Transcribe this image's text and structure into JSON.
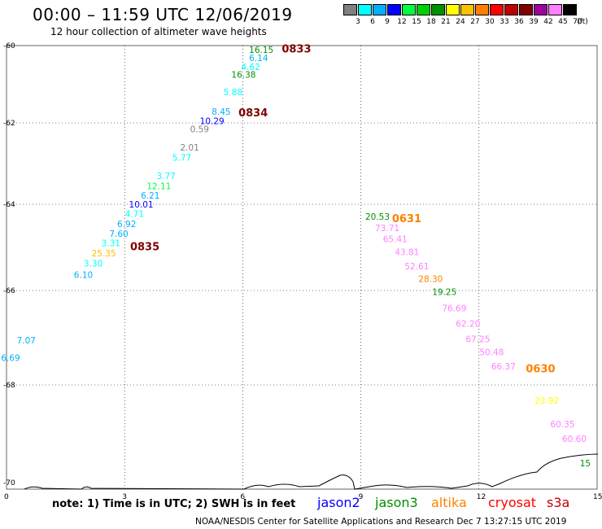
{
  "header": {
    "title": "00:00 – 11:59 UTC 12/06/2019",
    "subtitle": "12 hour collection of altimeter wave heights"
  },
  "legend": {
    "colors": [
      "#808080",
      "#00ffff",
      "#00b0ff",
      "#0000ff",
      "#00ff40",
      "#00d000",
      "#009000",
      "#ffff00",
      "#ffc000",
      "#ff8000",
      "#ff0000",
      "#c00000",
      "#800000",
      "#a000a0",
      "#ff80ff",
      "#000000"
    ],
    "labels": [
      "3",
      "6",
      "9",
      "12",
      "15",
      "18",
      "21",
      "24",
      "27",
      "30",
      "33",
      "36",
      "39",
      "42",
      "45",
      "70"
    ],
    "unit": "(ft)"
  },
  "axes": {
    "lat_ticks": [
      "-60",
      "-62",
      "-64",
      "-66",
      "-68",
      "-70"
    ],
    "lon_ticks": [
      "0",
      "3",
      "6",
      "9",
      "12",
      "15"
    ]
  },
  "observations": [
    {
      "lon": 6.45,
      "lat": -60.1,
      "value": "16.15",
      "color": "#009000"
    },
    {
      "lon": 6.45,
      "lat": -60.32,
      "value": "6.14",
      "color": "#00b0ff"
    },
    {
      "lon": 6.25,
      "lat": -60.55,
      "value": "4.62",
      "color": "#00ffff"
    },
    {
      "lon": 6.0,
      "lat": -60.75,
      "value": "16.38",
      "color": "#009000"
    },
    {
      "lon": 5.8,
      "lat": -61.2,
      "value": "5.88",
      "color": "#00ffff"
    },
    {
      "lon": 5.5,
      "lat": -61.7,
      "value": "8.45",
      "color": "#00b0ff"
    },
    {
      "lon": 5.2,
      "lat": -61.95,
      "value": "10.29",
      "color": "#0000ff"
    },
    {
      "lon": 4.95,
      "lat": -62.15,
      "value": "0.59",
      "color": "#808080"
    },
    {
      "lon": 4.7,
      "lat": -62.6,
      "value": "2.01",
      "color": "#808080"
    },
    {
      "lon": 4.5,
      "lat": -62.85,
      "value": "5.77",
      "color": "#00ffff"
    },
    {
      "lon": 4.1,
      "lat": -63.3,
      "value": "3.77",
      "color": "#00ffff"
    },
    {
      "lon": 3.85,
      "lat": -63.55,
      "value": "12.11",
      "color": "#00ff40"
    },
    {
      "lon": 3.7,
      "lat": -63.78,
      "value": "6.21",
      "color": "#00b0ff"
    },
    {
      "lon": 3.4,
      "lat": -64.0,
      "value": "10.01",
      "color": "#0000ff"
    },
    {
      "lon": 3.3,
      "lat": -64.22,
      "value": "4.71",
      "color": "#00ffff"
    },
    {
      "lon": 3.1,
      "lat": -64.45,
      "value": "6.92",
      "color": "#00b0ff"
    },
    {
      "lon": 2.9,
      "lat": -64.68,
      "value": "7.60",
      "color": "#00b0ff"
    },
    {
      "lon": 2.7,
      "lat": -64.9,
      "value": "3.31",
      "color": "#00ffff"
    },
    {
      "lon": 2.45,
      "lat": -65.13,
      "value": "25.35",
      "color": "#ffc000"
    },
    {
      "lon": 2.25,
      "lat": -65.37,
      "value": "3.30",
      "color": "#00ffff"
    },
    {
      "lon": 2.0,
      "lat": -65.63,
      "value": "6.10",
      "color": "#00b0ff"
    },
    {
      "lon": 0.55,
      "lat": -67.05,
      "value": "7.07",
      "color": "#00b0ff"
    },
    {
      "lon": 0.15,
      "lat": -67.42,
      "value": "6.69",
      "color": "#00b0ff"
    },
    {
      "lon": 9.4,
      "lat": -64.28,
      "value": "20.53",
      "color": "#009000"
    },
    {
      "lon": 9.65,
      "lat": -64.55,
      "value": "73.71",
      "color": "#ff80ff"
    },
    {
      "lon": 9.85,
      "lat": -64.8,
      "value": "65.41",
      "color": "#ff80ff"
    },
    {
      "lon": 10.15,
      "lat": -65.1,
      "value": "43.81",
      "color": "#ff80ff"
    },
    {
      "lon": 10.4,
      "lat": -65.43,
      "value": "52.61",
      "color": "#ff80ff"
    },
    {
      "lon": 10.75,
      "lat": -65.73,
      "value": "28.30",
      "color": "#ff8000"
    },
    {
      "lon": 11.1,
      "lat": -66.03,
      "value": "19.25",
      "color": "#009000"
    },
    {
      "lon": 11.35,
      "lat": -66.37,
      "value": "76.69",
      "color": "#ff80ff"
    },
    {
      "lon": 11.7,
      "lat": -66.7,
      "value": "62.20",
      "color": "#ff80ff"
    },
    {
      "lon": 11.95,
      "lat": -67.03,
      "value": "67.25",
      "color": "#ff80ff"
    },
    {
      "lon": 12.3,
      "lat": -67.3,
      "value": "50.48",
      "color": "#ff80ff"
    },
    {
      "lon": 12.6,
      "lat": -67.6,
      "value": "66.37",
      "color": "#ff80ff"
    },
    {
      "lon": 13.7,
      "lat": -68.32,
      "value": "23.92",
      "color": "#ffff00"
    },
    {
      "lon": 14.1,
      "lat": -68.8,
      "value": "60.35",
      "color": "#ff80ff"
    },
    {
      "lon": 14.4,
      "lat": -69.1,
      "value": "60.60",
      "color": "#ff80ff"
    },
    {
      "lon": 14.85,
      "lat": -69.6,
      "value": "15",
      "color": "#009000"
    }
  ],
  "pass_labels": [
    {
      "lon": 7.3,
      "lat": -60.07,
      "text": "0833",
      "color": "#800000"
    },
    {
      "lon": 6.2,
      "lat": -61.73,
      "text": "0834",
      "color": "#800000"
    },
    {
      "lon": 3.45,
      "lat": -64.97,
      "text": "0835",
      "color": "#800000"
    },
    {
      "lon": 10.1,
      "lat": -64.32,
      "text": "0631",
      "color": "#ff8000"
    },
    {
      "lon": 13.5,
      "lat": -67.65,
      "text": "0630",
      "color": "#ff8000"
    }
  ],
  "note": "note: 1) Time is in UTC; 2) SWH is in feet",
  "satellites": [
    {
      "name": "jason2",
      "color": "#0000ff"
    },
    {
      "name": "jason3",
      "color": "#009000"
    },
    {
      "name": "altika",
      "color": "#ff8000"
    },
    {
      "name": "cryosat",
      "color": "#ff0000"
    },
    {
      "name": "s3a",
      "color": "#c00000"
    }
  ],
  "footer": "NOAA/NESDIS Center for Satellite Applications and Research    Dec  7 13:27:15 UTC 2019"
}
